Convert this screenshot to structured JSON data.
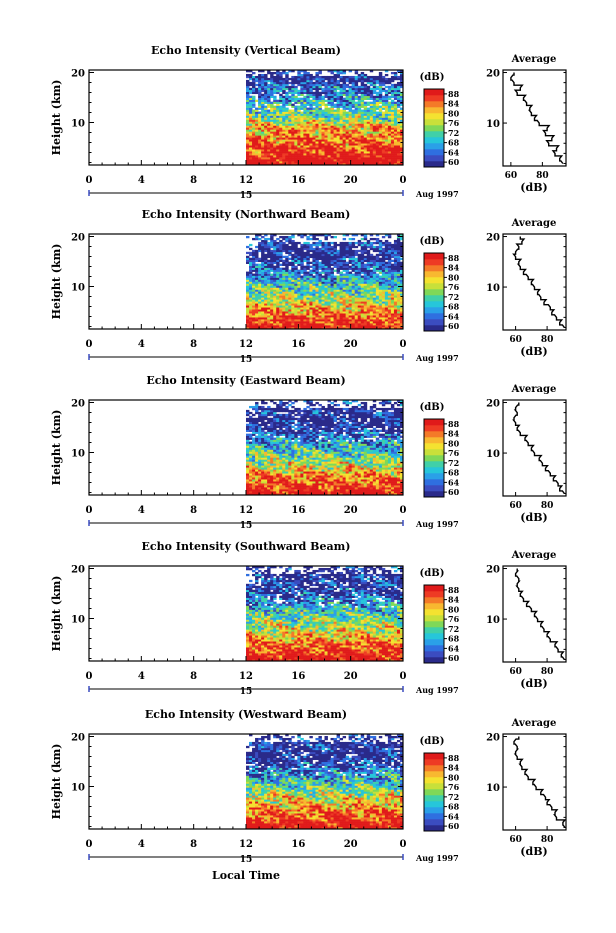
{
  "figure": {
    "time_label": "Local Time",
    "date_label": "Aug 1997",
    "date_tick": "15",
    "ylabel": "Height (km)",
    "colorbar_unit": "(dB)",
    "profile_title": "Average",
    "profile_xlabel": "(dB)"
  },
  "chart_data": [
    {
      "type": "heatmap",
      "title": "Echo Intensity (Vertical Beam)",
      "xlabel": "Local Time",
      "ylabel": "Height (km)",
      "x_ticks": [
        "0",
        "4",
        "8",
        "12",
        "16",
        "20",
        "0"
      ],
      "xlim": [
        0,
        24
      ],
      "y_ticks": [
        "10",
        "20"
      ],
      "ylim": [
        1.5,
        20.5
      ],
      "data_start_hour": 12,
      "colorbar": {
        "label": "(dB)",
        "ticks": [
          "60",
          "64",
          "68",
          "72",
          "76",
          "80",
          "84",
          "88"
        ],
        "range": [
          60,
          90
        ]
      },
      "profile": {
        "type": "line",
        "title": "Average",
        "xlabel": "(dB)",
        "x_ticks": [
          "60",
          "80"
        ],
        "xlim": [
          55,
          95
        ],
        "heights_km": [
          2,
          3,
          4,
          5,
          6,
          7,
          8,
          9,
          10,
          11,
          12,
          13,
          14,
          15,
          16,
          17,
          18,
          19,
          20
        ],
        "values_db": [
          93,
          91,
          88,
          89,
          84,
          86,
          82,
          83,
          78,
          75,
          73,
          72,
          70,
          68,
          64,
          66,
          62,
          60,
          62
        ]
      }
    },
    {
      "type": "heatmap",
      "title": "Echo Intensity (Northward Beam)",
      "xlabel": "Local Time",
      "ylabel": "Height (km)",
      "x_ticks": [
        "0",
        "4",
        "8",
        "12",
        "16",
        "20",
        "0"
      ],
      "xlim": [
        0,
        24
      ],
      "y_ticks": [
        "10",
        "20"
      ],
      "ylim": [
        1.5,
        20.5
      ],
      "data_start_hour": 12,
      "colorbar": {
        "label": "(dB)",
        "ticks": [
          "60",
          "64",
          "68",
          "72",
          "76",
          "80",
          "84",
          "88"
        ],
        "range": [
          60,
          90
        ]
      },
      "profile": {
        "type": "line",
        "title": "Average",
        "xlabel": "(dB)",
        "x_ticks": [
          "60",
          "80"
        ],
        "xlim": [
          52,
          92
        ],
        "heights_km": [
          2,
          3,
          4,
          5,
          6,
          7,
          8,
          9,
          10,
          11,
          12,
          13,
          14,
          15,
          16,
          17,
          18,
          19,
          20
        ],
        "values_db": [
          91,
          88,
          86,
          83,
          82,
          78,
          76,
          74,
          72,
          70,
          68,
          65,
          63,
          62,
          60,
          60,
          62,
          64,
          63
        ]
      }
    },
    {
      "type": "heatmap",
      "title": "Echo Intensity (Eastward Beam)",
      "xlabel": "Local Time",
      "ylabel": "Height (km)",
      "x_ticks": [
        "0",
        "4",
        "8",
        "12",
        "16",
        "20",
        "0"
      ],
      "xlim": [
        0,
        24
      ],
      "y_ticks": [
        "10",
        "20"
      ],
      "ylim": [
        1.5,
        20.5
      ],
      "data_start_hour": 12,
      "colorbar": {
        "label": "(dB)",
        "ticks": [
          "60",
          "64",
          "68",
          "72",
          "76",
          "80",
          "84",
          "88"
        ],
        "range": [
          60,
          90
        ]
      },
      "profile": {
        "type": "line",
        "title": "Average",
        "xlabel": "(dB)",
        "x_ticks": [
          "60",
          "80"
        ],
        "xlim": [
          52,
          92
        ],
        "heights_km": [
          2,
          3,
          4,
          5,
          6,
          7,
          8,
          9,
          10,
          11,
          12,
          13,
          14,
          15,
          16,
          17,
          18,
          19,
          20
        ],
        "values_db": [
          91,
          88,
          87,
          84,
          82,
          79,
          77,
          75,
          72,
          70,
          68,
          66,
          63,
          61,
          60,
          59,
          61,
          60,
          62
        ]
      }
    },
    {
      "type": "heatmap",
      "title": "Echo Intensity (Southward Beam)",
      "xlabel": "Local Time",
      "ylabel": "Height (km)",
      "x_ticks": [
        "0",
        "4",
        "8",
        "12",
        "16",
        "20",
        "0"
      ],
      "xlim": [
        0,
        24
      ],
      "y_ticks": [
        "10",
        "20"
      ],
      "ylim": [
        1.5,
        20.5
      ],
      "data_start_hour": 12,
      "colorbar": {
        "label": "(dB)",
        "ticks": [
          "60",
          "64",
          "68",
          "72",
          "76",
          "80",
          "84",
          "88"
        ],
        "range": [
          60,
          90
        ]
      },
      "profile": {
        "type": "line",
        "title": "Average",
        "xlabel": "(dB)",
        "x_ticks": [
          "60",
          "80"
        ],
        "xlim": [
          52,
          92
        ],
        "heights_km": [
          2,
          3,
          4,
          5,
          6,
          7,
          8,
          9,
          10,
          11,
          12,
          13,
          14,
          15,
          16,
          17,
          18,
          19,
          20
        ],
        "values_db": [
          91,
          89,
          87,
          85,
          82,
          80,
          78,
          76,
          74,
          72,
          70,
          67,
          65,
          63,
          62,
          61,
          62,
          60,
          61
        ]
      }
    },
    {
      "type": "heatmap",
      "title": "Echo Intensity (Westward Beam)",
      "xlabel": "Local Time",
      "ylabel": "Height (km)",
      "x_ticks": [
        "0",
        "4",
        "8",
        "12",
        "16",
        "20",
        "0"
      ],
      "xlim": [
        0,
        24
      ],
      "y_ticks": [
        "10",
        "20"
      ],
      "ylim": [
        1.5,
        20.5
      ],
      "data_start_hour": 12,
      "colorbar": {
        "label": "(dB)",
        "ticks": [
          "60",
          "64",
          "68",
          "72",
          "76",
          "80",
          "84",
          "88"
        ],
        "range": [
          60,
          90
        ]
      },
      "profile": {
        "type": "line",
        "title": "Average",
        "xlabel": "(dB)",
        "x_ticks": [
          "60",
          "80"
        ],
        "xlim": [
          52,
          92
        ],
        "heights_km": [
          2,
          3,
          4,
          5,
          6,
          7,
          8,
          9,
          10,
          11,
          12,
          13,
          14,
          15,
          16,
          17,
          18,
          19,
          20
        ],
        "values_db": [
          92,
          90,
          86,
          85,
          83,
          80,
          79,
          76,
          73,
          71,
          68,
          66,
          64,
          63,
          61,
          60,
          61,
          59,
          62
        ]
      }
    }
  ]
}
